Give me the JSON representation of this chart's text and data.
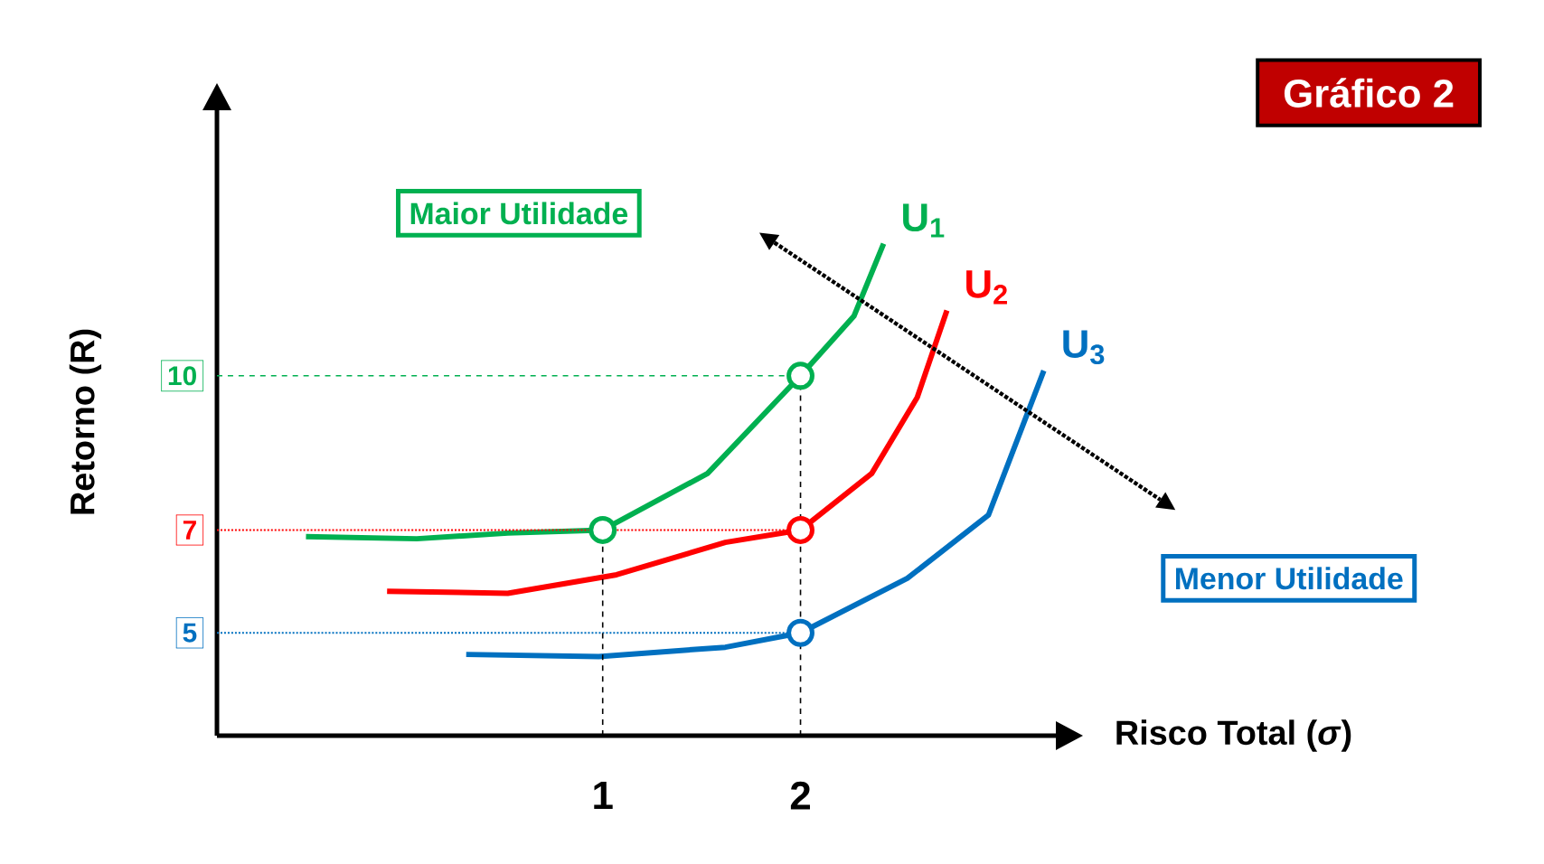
{
  "chart_data": {
    "type": "line",
    "title": "Gráfico 2",
    "xlabel": "Risco Total (*σ*)",
    "ylabel": "Retorno (R)",
    "xlim": [
      -0.95,
      3.3
    ],
    "ylim": [
      3,
      15.2
    ],
    "xticks": [
      1,
      2
    ],
    "yticks": [
      5,
      7,
      10
    ],
    "grid": false,
    "annotations": [
      "Maior Utilidade",
      "Menor Utilidade"
    ],
    "series": [
      {
        "name": "U$_{1}$",
        "color": "#00b050",
        "x": [
          -0.5,
          0.06,
          0.52,
          1,
          1.53,
          2,
          2.27,
          2.42
        ],
        "values": [
          6.87,
          6.83,
          6.94,
          7,
          8.1,
          10,
          11.16,
          12.57
        ]
      },
      {
        "name": "U$_{2}$",
        "color": "#ff0000",
        "x": [
          -0.09,
          0.52,
          1.07,
          1.62,
          2,
          2.36,
          2.59,
          2.74
        ],
        "values": [
          5.81,
          5.77,
          6.13,
          6.76,
          7,
          8.1,
          9.58,
          11.27
        ]
      },
      {
        "name": "U$_{3}$",
        "color": "#0070c0",
        "x": [
          0.31,
          0.98,
          1.62,
          2,
          2.54,
          2.95,
          3.23
        ],
        "values": [
          4.58,
          4.54,
          4.72,
          5,
          6.06,
          7.29,
          10.1
        ]
      },
      {
        "color": "#00b050",
        "line_style": "dashed",
        "x": [
          -0.95,
          2
        ],
        "values": [
          10,
          10
        ]
      },
      {
        "color": "#ff0000",
        "line_style": "dotted",
        "x": [
          -0.95,
          2
        ],
        "values": [
          7,
          7
        ]
      },
      {
        "color": "#0070c0",
        "line_style": "dotted",
        "x": [
          -0.95,
          2
        ],
        "values": [
          5,
          5
        ]
      },
      {
        "color": "#000000",
        "line_style": "dashed",
        "x": [
          1,
          1
        ],
        "values": [
          3,
          7
        ]
      },
      {
        "color": "#000000",
        "line_style": "dashed",
        "x": [
          2,
          2
        ],
        "values": [
          3,
          10
        ]
      },
      {
        "type": "scatter",
        "marker": "circle",
        "x": [
          1,
          2,
          2,
          2
        ],
        "values": [
          7,
          10,
          7,
          5
        ],
        "colors": [
          "#00b050",
          "#00b050",
          "#ff0000",
          "#0070c0"
        ]
      }
    ]
  }
}
